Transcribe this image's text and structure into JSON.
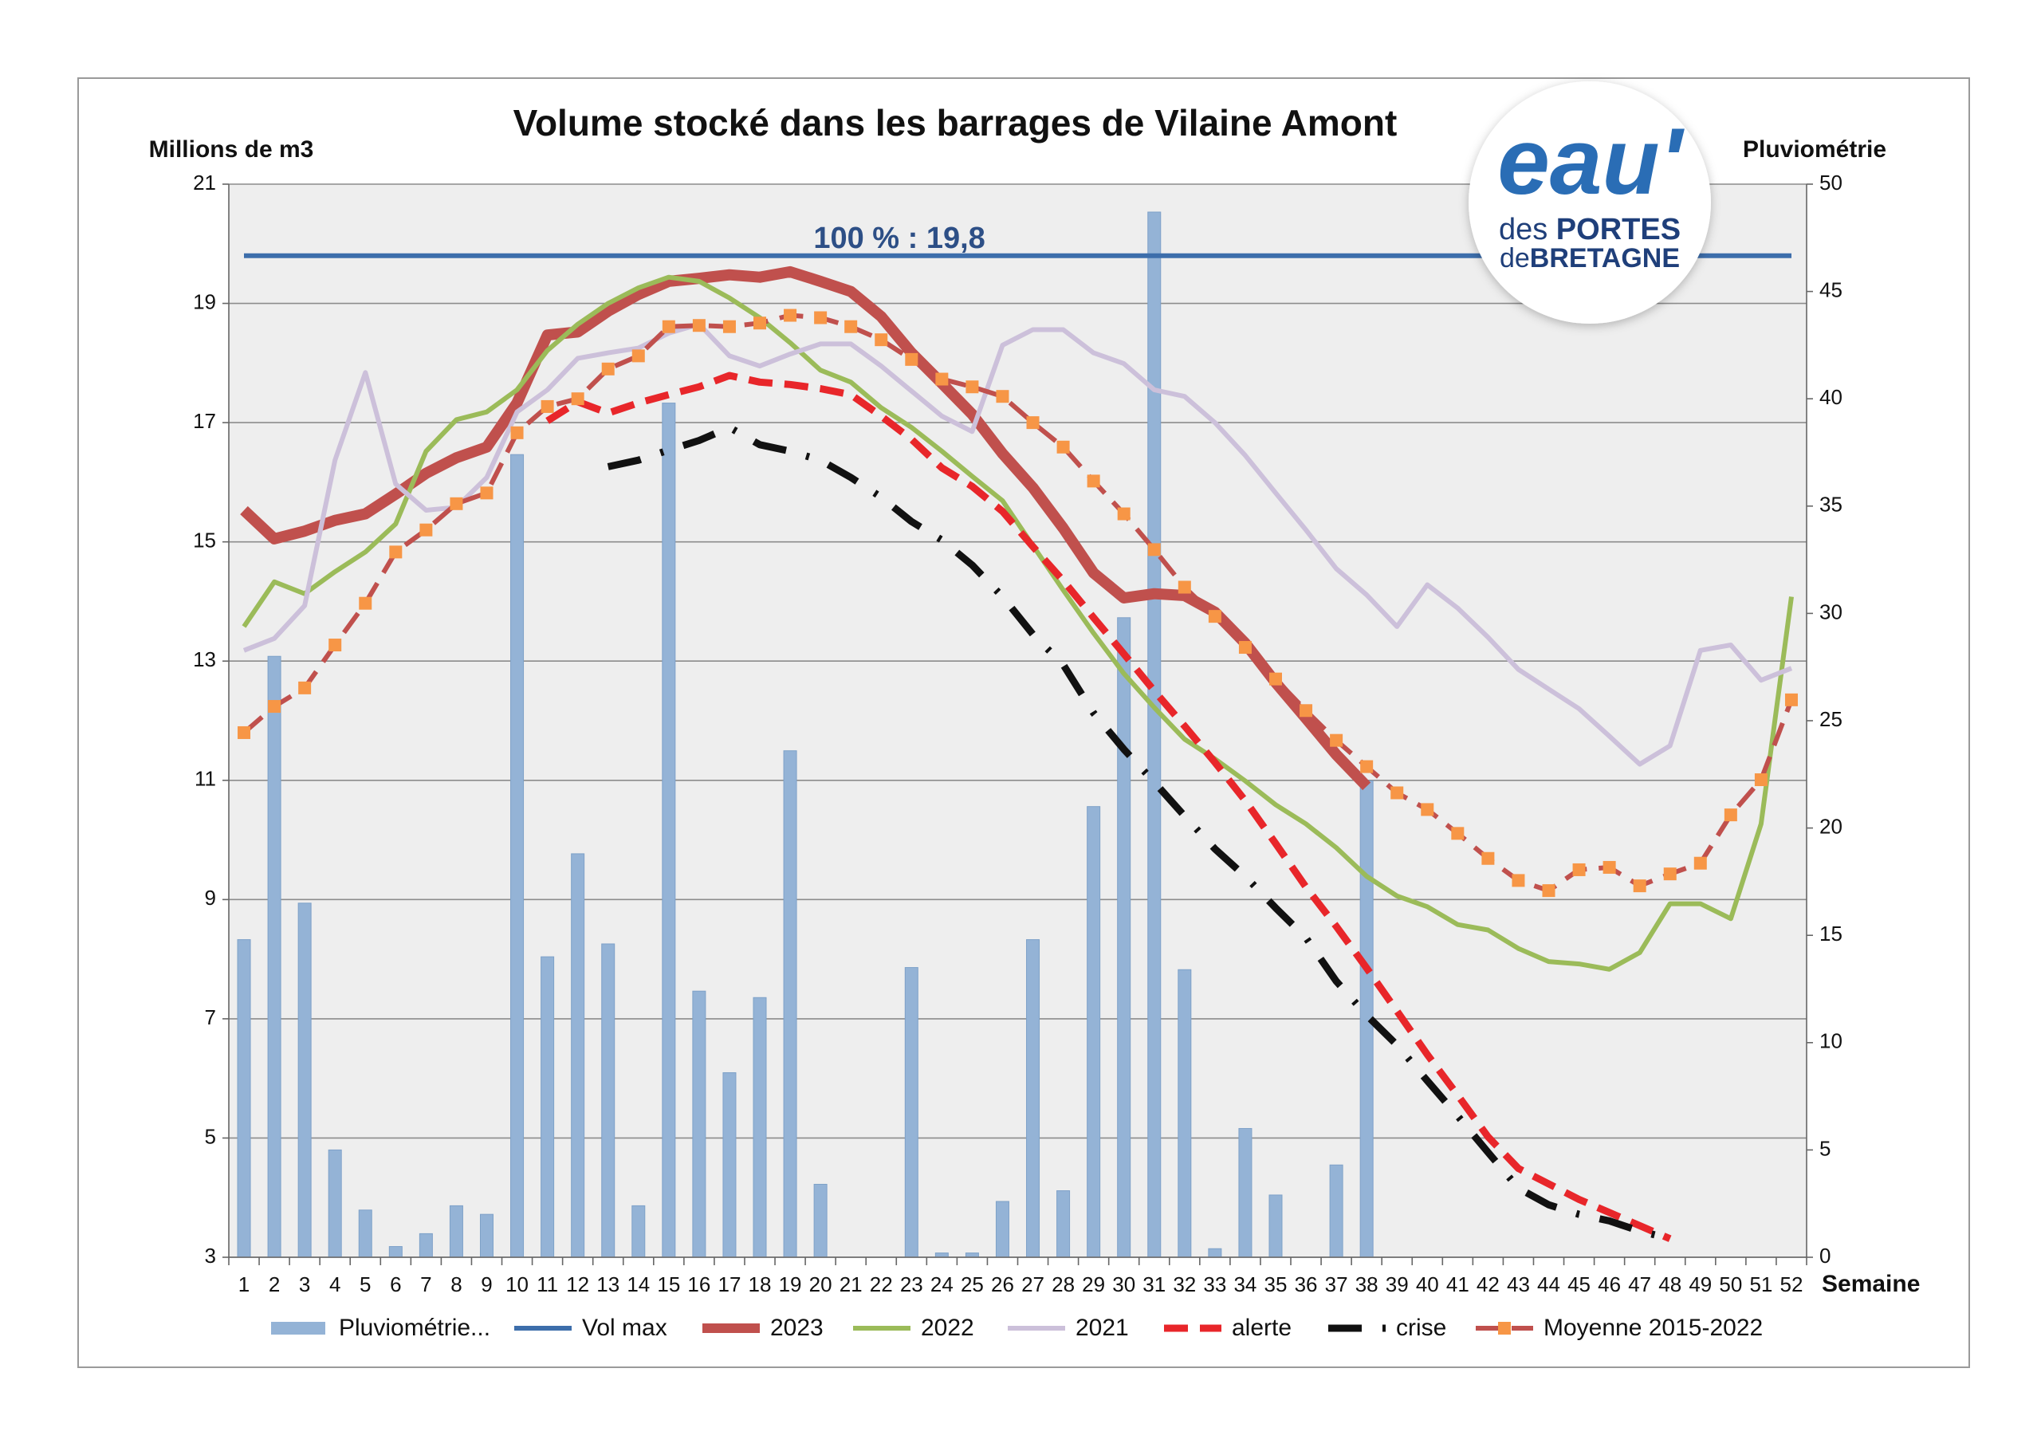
{
  "chart_data": {
    "type": "combo",
    "title": "Volume stocké dans les barrages de Vilaine Amont",
    "ylabel": "Millions de m3",
    "y2label": "Pluviométrie",
    "xlabel": "Semaine",
    "annotation": "100 % : 19,8",
    "categories": [
      1,
      2,
      3,
      4,
      5,
      6,
      7,
      8,
      9,
      10,
      11,
      12,
      13,
      14,
      15,
      16,
      17,
      18,
      19,
      20,
      21,
      22,
      23,
      24,
      25,
      26,
      27,
      28,
      29,
      30,
      31,
      32,
      33,
      34,
      35,
      36,
      37,
      38,
      39,
      40,
      41,
      42,
      43,
      44,
      45,
      46,
      47,
      48,
      49,
      50,
      51,
      52
    ],
    "ylim": [
      3,
      21
    ],
    "yticks": [
      3,
      5,
      7,
      9,
      11,
      13,
      15,
      17,
      19,
      21
    ],
    "y2lim": [
      0,
      50
    ],
    "y2ticks": [
      0,
      5,
      10,
      15,
      20,
      25,
      30,
      35,
      40,
      45,
      50
    ],
    "grid": true,
    "series": [
      {
        "name": "Pluviométrie...",
        "kind": "bar",
        "axis": "y2",
        "color": "#94b3d6",
        "values": [
          14.8,
          28.0,
          16.5,
          5.0,
          2.2,
          0.5,
          1.1,
          2.4,
          2.0,
          37.4,
          14.0,
          18.8,
          14.6,
          2.4,
          39.8,
          12.4,
          8.6,
          12.1,
          23.6,
          3.4,
          0,
          0,
          13.5,
          0.2,
          0.2,
          2.6,
          14.8,
          3.1,
          21.0,
          29.8,
          48.7,
          13.4,
          0.4,
          6.0,
          2.9,
          0,
          4.3,
          22.2,
          null,
          null,
          null,
          null,
          null,
          null,
          null,
          null,
          null,
          null,
          null,
          null,
          null,
          null
        ]
      },
      {
        "name": "Vol max",
        "kind": "line",
        "color": "#3d6eab",
        "values": [
          19.8,
          19.8,
          19.8,
          19.8,
          19.8,
          19.8,
          19.8,
          19.8,
          19.8,
          19.8,
          19.8,
          19.8,
          19.8,
          19.8,
          19.8,
          19.8,
          19.8,
          19.8,
          19.8,
          19.8,
          19.8,
          19.8,
          19.8,
          19.8,
          19.8,
          19.8,
          19.8,
          19.8,
          19.8,
          19.8,
          19.8,
          19.8,
          19.8,
          19.8,
          19.8,
          19.8,
          19.8,
          19.8,
          19.8,
          19.8,
          19.8,
          19.8,
          19.8,
          19.8,
          19.8,
          19.8,
          19.8,
          19.8,
          19.8,
          19.8,
          19.8,
          19.8
        ]
      },
      {
        "name": "2023",
        "kind": "line",
        "color": "#c0504d",
        "values": [
          15.53,
          15.05,
          15.18,
          15.36,
          15.47,
          15.8,
          16.15,
          16.41,
          16.59,
          17.33,
          18.47,
          18.52,
          18.87,
          19.15,
          19.37,
          19.42,
          19.48,
          19.44,
          19.53,
          19.37,
          19.2,
          18.78,
          18.17,
          17.66,
          17.14,
          16.48,
          15.91,
          15.23,
          14.48,
          14.06,
          14.13,
          14.1,
          13.82,
          13.3,
          12.64,
          12.04,
          11.43,
          10.9,
          null,
          null,
          null,
          null,
          null,
          null,
          null,
          null,
          null,
          null,
          null,
          null,
          null,
          null
        ]
      },
      {
        "name": "2022",
        "kind": "line",
        "color": "#9bbb59",
        "values": [
          13.58,
          14.33,
          14.13,
          14.5,
          14.83,
          15.3,
          16.52,
          17.05,
          17.18,
          17.55,
          18.21,
          18.65,
          19.0,
          19.26,
          19.44,
          19.37,
          19.09,
          18.76,
          18.34,
          17.88,
          17.68,
          17.25,
          16.92,
          16.52,
          16.1,
          15.69,
          14.94,
          14.19,
          13.47,
          12.79,
          12.22,
          11.69,
          11.36,
          10.99,
          10.59,
          10.27,
          9.87,
          9.39,
          9.06,
          8.88,
          8.58,
          8.49,
          8.18,
          7.96,
          7.92,
          7.83,
          8.11,
          8.93,
          8.93,
          8.68,
          10.27,
          14.08
        ]
      },
      {
        "name": "2021",
        "kind": "line",
        "color": "#ccc0da",
        "values": [
          13.18,
          13.38,
          13.93,
          16.37,
          17.84,
          15.97,
          15.53,
          15.58,
          16.08,
          17.18,
          17.55,
          18.08,
          18.17,
          18.25,
          18.5,
          18.65,
          18.12,
          17.95,
          18.15,
          18.32,
          18.32,
          17.95,
          17.53,
          17.11,
          16.85,
          18.3,
          18.56,
          18.56,
          18.17,
          17.99,
          17.55,
          17.44,
          17.0,
          16.45,
          15.82,
          15.2,
          14.55,
          14.11,
          13.58,
          14.28,
          13.89,
          13.4,
          12.86,
          12.53,
          12.2,
          11.74,
          11.27,
          11.58,
          13.18,
          13.27,
          12.68,
          12.88
        ]
      },
      {
        "name": "alerte",
        "kind": "line",
        "dash": "dash",
        "color": "#e8262a",
        "values": [
          null,
          null,
          null,
          null,
          null,
          null,
          null,
          null,
          null,
          null,
          17.03,
          17.35,
          17.16,
          17.33,
          17.47,
          17.6,
          17.79,
          17.68,
          17.64,
          17.57,
          17.47,
          17.11,
          16.72,
          16.24,
          15.93,
          15.51,
          14.92,
          14.35,
          13.73,
          13.12,
          12.5,
          11.91,
          11.3,
          10.66,
          9.94,
          9.21,
          8.55,
          7.85,
          7.13,
          6.4,
          5.72,
          5.02,
          4.49,
          4.23,
          3.97,
          3.75,
          3.53,
          3.31,
          null,
          null,
          null,
          null
        ]
      },
      {
        "name": "crise",
        "kind": "line",
        "dash": "dashdot",
        "color": "#111111",
        "values": [
          null,
          null,
          null,
          null,
          null,
          null,
          null,
          null,
          null,
          null,
          null,
          null,
          16.26,
          16.37,
          16.54,
          16.7,
          16.92,
          16.63,
          16.52,
          16.37,
          16.08,
          15.75,
          15.34,
          15.03,
          14.61,
          14.08,
          13.45,
          12.94,
          12.13,
          11.52,
          10.97,
          10.4,
          9.85,
          9.39,
          8.86,
          8.36,
          7.63,
          7.06,
          6.56,
          5.96,
          5.37,
          4.76,
          4.16,
          3.88,
          3.72,
          3.61,
          3.44,
          3.31,
          null,
          null,
          null,
          null
        ]
      },
      {
        "name": "Moyenne 2015-2022",
        "kind": "line",
        "dash": "dash",
        "marker": "square",
        "marker_color": "#f79646",
        "color": "#c0504d",
        "values": [
          11.8,
          12.24,
          12.55,
          13.27,
          13.97,
          14.83,
          15.2,
          15.64,
          15.82,
          16.83,
          17.27,
          17.4,
          17.9,
          18.12,
          18.61,
          18.63,
          18.61,
          18.67,
          18.8,
          18.76,
          18.61,
          18.39,
          18.06,
          17.73,
          17.6,
          17.44,
          17.0,
          16.59,
          16.02,
          15.47,
          14.87,
          14.24,
          13.75,
          13.23,
          12.7,
          12.17,
          11.67,
          11.23,
          10.79,
          10.51,
          10.11,
          9.69,
          9.32,
          9.15,
          9.5,
          9.54,
          9.23,
          9.43,
          9.61,
          10.42,
          11.01,
          12.35
        ]
      }
    ]
  },
  "logo": {
    "mark": "eau'",
    "line1a": "des",
    "line1b": "PORTES",
    "line2a": "de",
    "line2b": "BRETAGNE"
  }
}
